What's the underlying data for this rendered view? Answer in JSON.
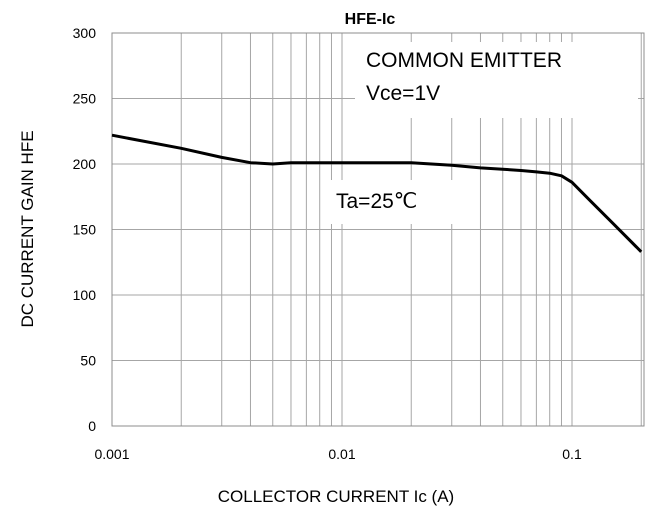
{
  "chart_data": {
    "type": "line",
    "title": "HFE-Ic",
    "xlabel": "COLLECTOR  CURRENT  Ic (A)",
    "ylabel": "DC CURRENT GAIN   HFE",
    "x_scale": "log",
    "xlim": [
      0.001,
      0.2
    ],
    "ylim": [
      0,
      300
    ],
    "x_ticks": [
      {
        "value": 0.001,
        "label": "0.001"
      },
      {
        "value": 0.01,
        "label": "0.01"
      },
      {
        "value": 0.1,
        "label": "0.1"
      }
    ],
    "y_ticks": [
      {
        "value": 0,
        "label": "0"
      },
      {
        "value": 50,
        "label": "50"
      },
      {
        "value": 100,
        "label": "100"
      },
      {
        "value": 150,
        "label": "150"
      },
      {
        "value": 200,
        "label": "200"
      },
      {
        "value": 250,
        "label": "250"
      },
      {
        "value": 300,
        "label": "300"
      }
    ],
    "grid": true,
    "series": [
      {
        "x": [
          0.001,
          0.002,
          0.003,
          0.004,
          0.005,
          0.006,
          0.008,
          0.01,
          0.015,
          0.02,
          0.03,
          0.04,
          0.05,
          0.06,
          0.07,
          0.08,
          0.09,
          0.1,
          0.12,
          0.15,
          0.2
        ],
        "y": [
          222,
          212,
          205,
          201,
          200,
          201,
          201,
          201,
          201,
          201,
          199,
          197,
          196,
          195,
          194,
          193,
          191,
          186,
          172,
          155,
          133
        ]
      }
    ],
    "annotations": [
      {
        "text": "COMMON EMITTER"
      },
      {
        "text": "Vce=1V"
      },
      {
        "text": "Ta=25℃"
      }
    ]
  }
}
